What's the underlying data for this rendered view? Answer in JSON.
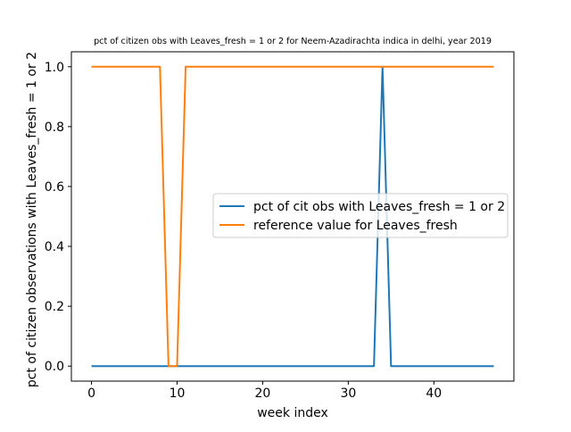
{
  "chart_data": {
    "type": "line",
    "title": "pct of citizen obs with Leaves_fresh = 1 or 2 for Neem-Azadirachta indica in delhi, year 2019",
    "xlabel": "week index",
    "ylabel": "pct of citizen observations with Leaves_fresh = 1 or 2",
    "xlim": [
      -2.35,
      49.35
    ],
    "ylim": [
      -0.05,
      1.05
    ],
    "xticks": [
      0,
      10,
      20,
      30,
      40
    ],
    "xtick_labels": [
      "0",
      "10",
      "20",
      "30",
      "40"
    ],
    "yticks": [
      0.0,
      0.2,
      0.4,
      0.6,
      0.8,
      1.0
    ],
    "ytick_labels": [
      "0.0",
      "0.2",
      "0.4",
      "0.6",
      "0.8",
      "1.0"
    ],
    "grid": false,
    "legend_position": "center-right",
    "x": [
      0,
      1,
      2,
      3,
      4,
      5,
      6,
      7,
      8,
      9,
      10,
      11,
      12,
      13,
      14,
      15,
      16,
      17,
      18,
      19,
      20,
      21,
      22,
      23,
      24,
      25,
      26,
      27,
      28,
      29,
      30,
      31,
      32,
      33,
      34,
      35,
      36,
      37,
      38,
      39,
      40,
      41,
      42,
      43,
      44,
      45,
      46,
      47
    ],
    "series": [
      {
        "name": "pct of cit obs with Leaves_fresh = 1 or 2",
        "color": "#1f77b4",
        "values": [
          0,
          0,
          0,
          0,
          0,
          0,
          0,
          0,
          0,
          0,
          0,
          0,
          0,
          0,
          0,
          0,
          0,
          0,
          0,
          0,
          0,
          0,
          0,
          0,
          0,
          0,
          0,
          0,
          0,
          0,
          0,
          0,
          0,
          0,
          1,
          0,
          0,
          0,
          0,
          0,
          0,
          0,
          0,
          0,
          0,
          0,
          0,
          0
        ]
      },
      {
        "name": "reference value for Leaves_fresh",
        "color": "#ff7f0e",
        "values": [
          1,
          1,
          1,
          1,
          1,
          1,
          1,
          1,
          1,
          0,
          0,
          1,
          1,
          1,
          1,
          1,
          1,
          1,
          1,
          1,
          1,
          1,
          1,
          1,
          1,
          1,
          1,
          1,
          1,
          1,
          1,
          1,
          1,
          1,
          1,
          1,
          1,
          1,
          1,
          1,
          1,
          1,
          1,
          1,
          1,
          1,
          1,
          1
        ]
      }
    ]
  }
}
